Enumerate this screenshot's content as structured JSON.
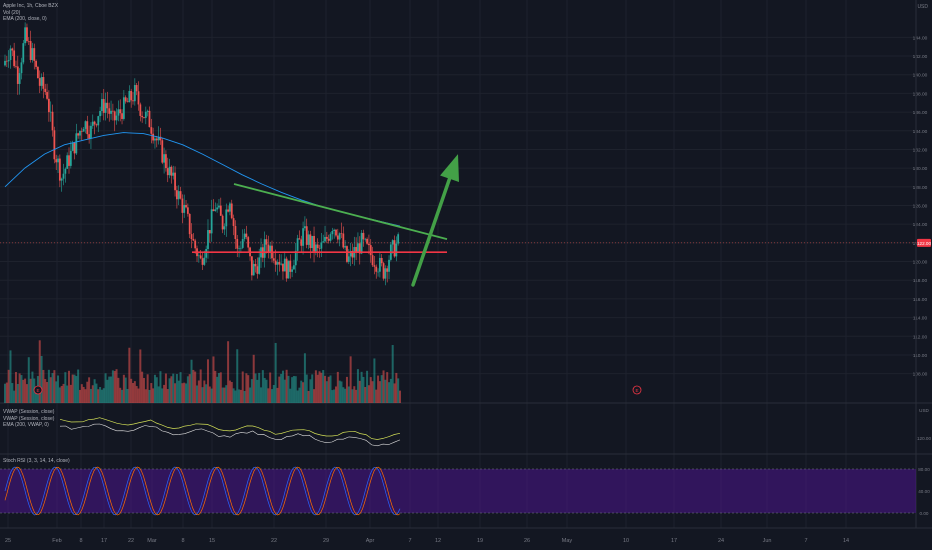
{
  "symbol": {
    "title": "Apple Inc, 1h, Cboe BZX",
    "currency": "USD",
    "last_price": "122.00",
    "indicators": [
      "Vol (20)",
      "EMA (200, close, 0)"
    ]
  },
  "price_axis": {
    "labels": [
      "144.00",
      "142.00",
      "140.00",
      "138.00",
      "136.00",
      "134.00",
      "132.00",
      "130.00",
      "128.00",
      "126.00",
      "124.00",
      "122.00",
      "120.00",
      "118.00",
      "116.00",
      "114.00",
      "112.00",
      "110.00",
      "108.00"
    ]
  },
  "vwap_pane": {
    "legend": [
      "VWAP (Session, close)",
      "VWAP (Session, close)",
      "EMA (200, VWAP, 0)"
    ],
    "currency": "USD",
    "axis_label": "120.00"
  },
  "stoch_pane": {
    "legend": "Stoch RSI (3, 3, 14, 14, close)",
    "axis_labels": [
      "80.00",
      "40.00",
      "0.00"
    ]
  },
  "time_axis": {
    "labels": [
      "25",
      "Feb",
      "8",
      "17",
      "22",
      "Mar",
      "8",
      "15",
      "22",
      "29",
      "Apr",
      "7",
      "12",
      "19",
      "26",
      "May",
      "10",
      "17",
      "24",
      "Jun",
      "7",
      "14"
    ]
  },
  "events": [
    "E",
    "E"
  ],
  "colors": {
    "background": "#131722",
    "up": "#26a69a",
    "down": "#ef5350",
    "ema": "#2196f3",
    "trendline": "#4caf50",
    "support": "#f23645",
    "arrow": "#43a047",
    "vwap": "#d4e157",
    "stoch_band": "#4a148c"
  },
  "chart_data": {
    "type": "candlestick",
    "title": "Apple Inc, 1h, Cboe BZX",
    "ylim": [
      107,
      145
    ],
    "close_series": [
      141,
      143,
      140,
      144,
      142,
      139,
      138,
      132,
      129,
      131,
      133,
      135,
      134,
      136,
      137,
      135,
      136,
      137,
      138,
      136,
      135,
      133,
      131,
      129,
      127,
      125,
      122,
      120,
      123,
      126,
      124,
      127,
      121,
      123,
      119,
      120,
      122,
      121,
      120,
      119,
      121,
      123,
      122,
      121,
      122,
      124,
      123,
      120,
      121,
      122,
      121,
      120,
      119,
      121,
      122
    ],
    "ema_series": [
      128,
      130,
      131.5,
      132.5,
      133,
      133.5,
      133.8,
      133.7,
      133.2,
      132.5,
      131.5,
      130.4,
      129.3,
      128.3,
      127.4,
      126.6,
      125.9,
      125.3,
      124.8,
      124.3,
      123.8
    ],
    "annotations": {
      "resistance": {
        "start": 128.3,
        "end": 122.4
      },
      "support": 121.0,
      "breakout_arrow": {
        "start": 117.5,
        "end": 131.5
      }
    },
    "panes": [
      "Volume",
      "VWAP / EMA",
      "Stoch RSI"
    ]
  }
}
